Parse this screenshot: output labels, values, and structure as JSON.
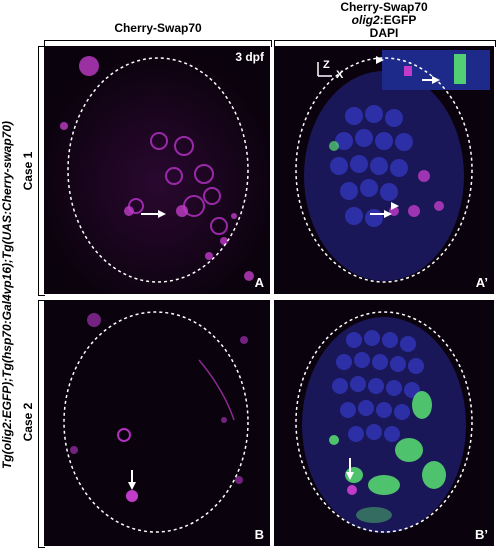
{
  "columns": {
    "left_title": "Cherry-Swap70",
    "right_title_line1": "Cherry-Swap70",
    "right_title_line2_italic": "olig2",
    "right_title_line2_rest": ":EGFP",
    "right_title_line3": "DAPI"
  },
  "genotype_label": "Tg(olig2:EGFP);Tg(hsp70:Gal4vp16);Tg(UAS:Cherry-swap70)",
  "rows": [
    "Case 1",
    "Case 2"
  ],
  "stage_label": "3 dpf",
  "axis_labels": {
    "z": "Z",
    "x": "X"
  },
  "panel_labels": {
    "a": "A",
    "a_prime": "A’",
    "b": "B",
    "b_prime": "B’"
  },
  "colors": {
    "magenta": "#c03cc8",
    "blue": "#3438c0",
    "green": "#58e070",
    "background": "#0a020c"
  }
}
